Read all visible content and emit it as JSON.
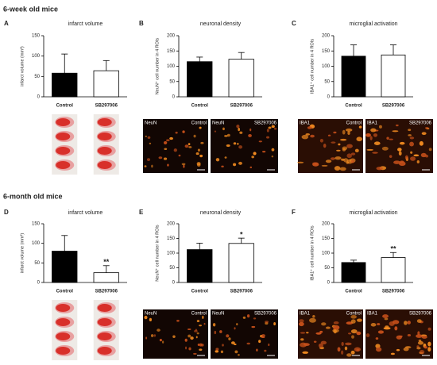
{
  "sections": [
    "6-week old mice",
    "6-month old mice"
  ],
  "chart_data": [
    {
      "type": "bar",
      "panel": "A",
      "title": "infarct volume",
      "ylabel": "infarct volume (mm³)",
      "categories": [
        "Control",
        "SB297006"
      ],
      "values": [
        58,
        64
      ],
      "errors": [
        47,
        25
      ],
      "colors": [
        "#000000",
        "#ffffff"
      ],
      "ylim": [
        0,
        150
      ],
      "yticks": [
        0,
        50,
        100,
        150
      ]
    },
    {
      "type": "bar",
      "panel": "B",
      "title": "neuronal density",
      "ylabel": "NeuN⁺ cell number in 4 ROIs",
      "categories": [
        "Control",
        "SB297006"
      ],
      "values": [
        115,
        123
      ],
      "errors": [
        15,
        22
      ],
      "colors": [
        "#000000",
        "#ffffff"
      ],
      "ylim": [
        0,
        200
      ],
      "yticks": [
        0,
        50,
        100,
        150,
        200
      ],
      "image_labels": [
        [
          "NeuN",
          "Control"
        ],
        [
          "NeuN",
          "SB297006"
        ]
      ]
    },
    {
      "type": "bar",
      "panel": "C",
      "title": "microglial activation",
      "ylabel": "IBA1⁺ cell number in 4 ROIs",
      "categories": [
        "Control",
        "SB297006"
      ],
      "values": [
        133,
        137
      ],
      "errors": [
        37,
        33
      ],
      "colors": [
        "#000000",
        "#ffffff"
      ],
      "ylim": [
        0,
        200
      ],
      "yticks": [
        0,
        50,
        100,
        150,
        200
      ],
      "image_labels": [
        [
          "IBA1",
          "Control"
        ],
        [
          "IBA1",
          "SB297006"
        ]
      ]
    },
    {
      "type": "bar",
      "panel": "D",
      "title": "infarct volume",
      "ylabel": "infarct volume (mm³)",
      "categories": [
        "Control",
        "SB297006"
      ],
      "values": [
        80,
        25
      ],
      "errors": [
        40,
        18
      ],
      "colors": [
        "#000000",
        "#ffffff"
      ],
      "ylim": [
        0,
        150
      ],
      "yticks": [
        0,
        50,
        100,
        150
      ],
      "significance": [
        null,
        "**"
      ]
    },
    {
      "type": "bar",
      "panel": "E",
      "title": "neuronal density",
      "ylabel": "NeuN⁺ cell number in 4 ROIs",
      "categories": [
        "Control",
        "SB297006"
      ],
      "values": [
        112,
        133
      ],
      "errors": [
        22,
        18
      ],
      "colors": [
        "#000000",
        "#ffffff"
      ],
      "ylim": [
        0,
        200
      ],
      "yticks": [
        0,
        50,
        100,
        150,
        200
      ],
      "significance": [
        null,
        "*"
      ],
      "image_labels": [
        [
          "NeuN",
          "Control"
        ],
        [
          "NeuN",
          "SB297006"
        ]
      ]
    },
    {
      "type": "bar",
      "panel": "F",
      "title": "microglial activation",
      "ylabel": "IBA1⁺ cell number in 4 ROIs",
      "categories": [
        "Control",
        "SB297006"
      ],
      "values": [
        68,
        85
      ],
      "errors": [
        8,
        17
      ],
      "colors": [
        "#000000",
        "#ffffff"
      ],
      "ylim": [
        0,
        200
      ],
      "yticks": [
        0,
        50,
        100,
        150,
        200
      ],
      "significance": [
        null,
        "**"
      ],
      "image_labels": [
        [
          "IBA1",
          "Control"
        ],
        [
          "IBA1",
          "SB297006"
        ]
      ]
    }
  ]
}
